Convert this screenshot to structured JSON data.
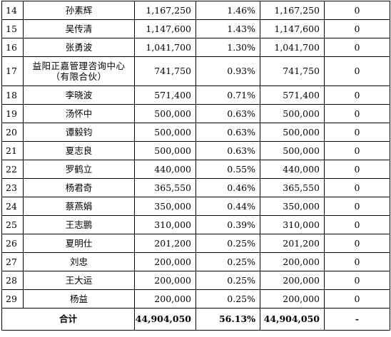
{
  "rows": [
    {
      "idx": "14",
      "name": "孙素辉",
      "amount": "1,167,250",
      "pct": "1.46%",
      "amount2": "1,167,250",
      "other": "0"
    },
    {
      "idx": "15",
      "name": "吴传清",
      "amount": "1,147,600",
      "pct": "1.43%",
      "amount2": "1,147,600",
      "other": "0"
    },
    {
      "idx": "16",
      "name": "张勇波",
      "amount": "1,041,700",
      "pct": "1.30%",
      "amount2": "1,041,700",
      "other": "0"
    },
    {
      "idx": "17",
      "name": "益阳正嘉管理咨询中心（有限合伙）",
      "amount": "741,750",
      "pct": "0.93%",
      "amount2": "741,750",
      "other": "0"
    },
    {
      "idx": "18",
      "name": "李晓波",
      "amount": "571,400",
      "pct": "0.71%",
      "amount2": "571,400",
      "other": "0"
    },
    {
      "idx": "19",
      "name": "汤怀中",
      "amount": "500,000",
      "pct": "0.63%",
      "amount2": "500,000",
      "other": "0"
    },
    {
      "idx": "20",
      "name": "谭毅钧",
      "amount": "500,000",
      "pct": "0.63%",
      "amount2": "500,000",
      "other": "0"
    },
    {
      "idx": "21",
      "name": "夏志良",
      "amount": "500,000",
      "pct": "0.63%",
      "amount2": "500,000",
      "other": "0"
    },
    {
      "idx": "22",
      "name": "罗鹤立",
      "amount": "440,000",
      "pct": "0.55%",
      "amount2": "440,000",
      "other": "0"
    },
    {
      "idx": "23",
      "name": "杨君奇",
      "amount": "365,550",
      "pct": "0.46%",
      "amount2": "365,550",
      "other": "0"
    },
    {
      "idx": "24",
      "name": "蔡燕娟",
      "amount": "350,000",
      "pct": "0.44%",
      "amount2": "350,000",
      "other": "0"
    },
    {
      "idx": "25",
      "name": "王志鹏",
      "amount": "310,000",
      "pct": "0.39%",
      "amount2": "310,000",
      "other": "0"
    },
    {
      "idx": "26",
      "name": "夏明仕",
      "amount": "201,200",
      "pct": "0.25%",
      "amount2": "201,200",
      "other": "0"
    },
    {
      "idx": "27",
      "name": "刘忠",
      "amount": "200,000",
      "pct": "0.25%",
      "amount2": "200,000",
      "other": "0"
    },
    {
      "idx": "28",
      "name": "王大运",
      "amount": "200,000",
      "pct": "0.25%",
      "amount2": "200,000",
      "other": "0"
    },
    {
      "idx": "29",
      "name": "杨益",
      "amount": "200,000",
      "pct": "0.25%",
      "amount2": "200,000",
      "other": "0"
    }
  ],
  "total": {
    "label": "合计",
    "amount": "44,904,050",
    "pct": "56.13%",
    "amount2": "44,904,050",
    "other": "-"
  }
}
